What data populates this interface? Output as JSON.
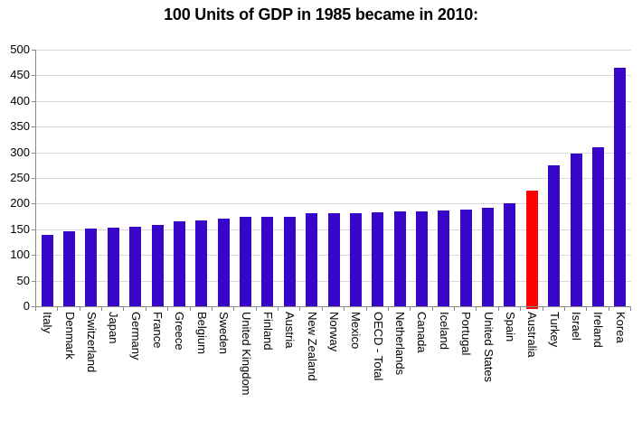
{
  "chart_data": {
    "type": "bar",
    "title": "100 Units of GDP in 1985 became in 2010:",
    "categories": [
      "Italy",
      "Denmark",
      "Switzerland",
      "Japan",
      "Germany",
      "France",
      "Greece",
      "Belgium",
      "Sweden",
      "United Kingdom",
      "Finland",
      "Austria",
      "New Zealand",
      "Norway",
      "Mexico",
      "OECD - Total",
      "Netherlands",
      "Canada",
      "Iceland",
      "Portugal",
      "United States",
      "Spain",
      "Australia",
      "Turkey",
      "Israel",
      "Ireland",
      "Korea"
    ],
    "values": [
      139,
      147,
      152,
      154,
      155,
      159,
      165,
      167,
      171,
      174,
      175,
      175,
      181,
      181,
      182,
      183,
      184,
      185,
      187,
      189,
      192,
      200,
      225,
      274,
      298,
      309,
      464
    ],
    "highlighted_category": "Australia",
    "xlabel": "",
    "ylabel": "",
    "ylim": [
      0,
      500
    ],
    "yticks": [
      0,
      50,
      100,
      150,
      200,
      250,
      300,
      350,
      400,
      450,
      500
    ],
    "grid": "horizontal",
    "legend_position": "none",
    "colors": {
      "bar": "#3806C8",
      "highlight": "#FF0000",
      "gridline": "#D9D9D9",
      "axis": "#898989",
      "text": "#000000",
      "background": "#FFFFFF"
    }
  }
}
